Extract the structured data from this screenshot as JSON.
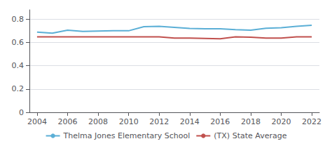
{
  "chart_data": {
    "type": "line",
    "x": [
      2004,
      2005,
      2006,
      2007,
      2008,
      2009,
      2010,
      2011,
      2012,
      2013,
      2014,
      2015,
      2016,
      2017,
      2018,
      2019,
      2020,
      2021,
      2022
    ],
    "series": [
      {
        "name": "Thelma Jones Elementary School",
        "color": "#5bafd6",
        "values": [
          0.688,
          0.68,
          0.705,
          0.695,
          0.698,
          0.7,
          0.7,
          0.735,
          0.738,
          0.73,
          0.72,
          0.718,
          0.718,
          0.71,
          0.705,
          0.722,
          0.727,
          0.738,
          0.748
        ]
      },
      {
        "name": "(TX) State Average",
        "color": "#c0504d",
        "values": [
          0.648,
          0.648,
          0.648,
          0.648,
          0.648,
          0.648,
          0.648,
          0.648,
          0.648,
          0.638,
          0.638,
          0.635,
          0.632,
          0.648,
          0.645,
          0.638,
          0.638,
          0.648,
          0.648
        ]
      }
    ],
    "xlim": [
      2003.5,
      2022.5
    ],
    "xticks": [
      2004,
      2006,
      2008,
      2010,
      2012,
      2014,
      2016,
      2018,
      2020,
      2022
    ],
    "ylim": [
      0,
      0.88
    ],
    "yticks": [
      0,
      0.2,
      0.4,
      0.6,
      0.8
    ],
    "grid": true,
    "legend": "bottom"
  }
}
